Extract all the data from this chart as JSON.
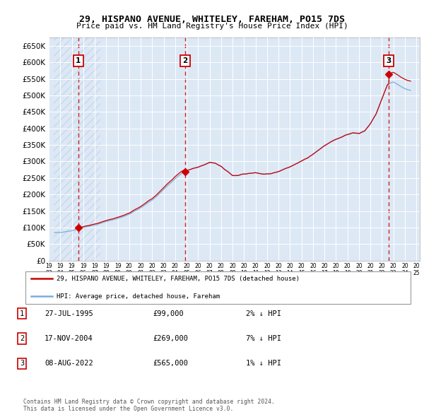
{
  "title1": "29, HISPANO AVENUE, WHITELEY, FAREHAM, PO15 7DS",
  "title2": "Price paid vs. HM Land Registry's House Price Index (HPI)",
  "ylim": [
    0,
    675000
  ],
  "yticks": [
    0,
    50000,
    100000,
    150000,
    200000,
    250000,
    300000,
    350000,
    400000,
    450000,
    500000,
    550000,
    600000,
    650000
  ],
  "xlim_start": 1993.4,
  "xlim_end": 2025.3,
  "bg_color": "#dde8f5",
  "hatch_color": "#c8d8ee",
  "grid_color": "#ffffff",
  "sale_points": [
    {
      "date_num": 1995.57,
      "price": 99000,
      "label": "1"
    },
    {
      "date_num": 2004.88,
      "price": 269000,
      "label": "2"
    },
    {
      "date_num": 2022.6,
      "price": 565000,
      "label": "3"
    }
  ],
  "legend_line1": "29, HISPANO AVENUE, WHITELEY, FAREHAM, PO15 7DS (detached house)",
  "legend_line2": "HPI: Average price, detached house, Fareham",
  "table_rows": [
    {
      "num": "1",
      "date": "27-JUL-1995",
      "price": "£99,000",
      "hpi": "2% ↓ HPI"
    },
    {
      "num": "2",
      "date": "17-NOV-2004",
      "price": "£269,000",
      "hpi": "7% ↓ HPI"
    },
    {
      "num": "3",
      "date": "08-AUG-2022",
      "price": "£565,000",
      "hpi": "1% ↓ HPI"
    }
  ],
  "footer": "Contains HM Land Registry data © Crown copyright and database right 2024.\nThis data is licensed under the Open Government Licence v3.0.",
  "sale_color": "#cc0000",
  "hpi_color": "#7aaddb",
  "vline_color": "#cc0000",
  "box_color": "#cc0000",
  "hpi_anchor_years": [
    1993.5,
    1994,
    1994.5,
    1995,
    1995.5,
    1996,
    1996.5,
    1997,
    1997.5,
    1998,
    1998.5,
    1999,
    1999.5,
    2000,
    2000.5,
    2001,
    2001.5,
    2002,
    2002.5,
    2003,
    2003.5,
    2004,
    2004.5,
    2005,
    2005.5,
    2006,
    2006.5,
    2007,
    2007.5,
    2008,
    2008.5,
    2009,
    2009.5,
    2010,
    2010.5,
    2011,
    2011.5,
    2012,
    2012.5,
    2013,
    2013.5,
    2014,
    2014.5,
    2015,
    2015.5,
    2016,
    2016.5,
    2017,
    2017.5,
    2018,
    2018.5,
    2019,
    2019.5,
    2020,
    2020.5,
    2021,
    2021.5,
    2022,
    2022.5,
    2023,
    2023.5,
    2024,
    2024.5
  ],
  "hpi_anchor_prices": [
    84000,
    86000,
    88000,
    91000,
    96000,
    100000,
    104000,
    108000,
    113000,
    118000,
    123000,
    128000,
    133000,
    140000,
    150000,
    160000,
    171000,
    183000,
    198000,
    215000,
    232000,
    248000,
    262000,
    272000,
    278000,
    283000,
    290000,
    298000,
    295000,
    285000,
    272000,
    258000,
    258000,
    262000,
    265000,
    267000,
    263000,
    262000,
    265000,
    270000,
    278000,
    285000,
    293000,
    302000,
    311000,
    322000,
    335000,
    348000,
    358000,
    368000,
    375000,
    382000,
    388000,
    385000,
    393000,
    415000,
    445000,
    490000,
    535000,
    540000,
    530000,
    520000,
    515000
  ]
}
